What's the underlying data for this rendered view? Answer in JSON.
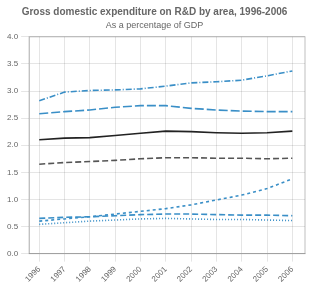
{
  "chart_data": {
    "type": "line",
    "title": "Gross domestic expenditure on R&D by area, 1996-2006",
    "subtitle": "As a percentage of GDP",
    "x": [
      1996,
      1997,
      1998,
      1999,
      2000,
      2001,
      2002,
      2003,
      2004,
      2005,
      2006
    ],
    "series": [
      {
        "color": "#3a8fc7",
        "line_style": "dashdot",
        "values": [
          2.82,
          2.98,
          3.01,
          3.02,
          3.04,
          3.09,
          3.15,
          3.17,
          3.2,
          3.28,
          3.37
        ]
      },
      {
        "color": "#3a8fc7",
        "line_style": "longdash",
        "values": [
          2.58,
          2.62,
          2.65,
          2.7,
          2.73,
          2.73,
          2.68,
          2.65,
          2.63,
          2.62,
          2.62
        ]
      },
      {
        "color": "#222222",
        "line_style": "solid",
        "values": [
          2.1,
          2.13,
          2.14,
          2.18,
          2.22,
          2.26,
          2.25,
          2.23,
          2.22,
          2.23,
          2.26
        ]
      },
      {
        "color": "#555555",
        "line_style": "dashed",
        "values": [
          1.65,
          1.68,
          1.7,
          1.72,
          1.75,
          1.77,
          1.77,
          1.76,
          1.76,
          1.75,
          1.76
        ]
      },
      {
        "color": "#3a8fc7",
        "line_style": "shortdash",
        "values": [
          0.6,
          0.64,
          0.68,
          0.73,
          0.78,
          0.83,
          0.9,
          0.99,
          1.08,
          1.2,
          1.38
        ]
      },
      {
        "color": "#3a8fc7",
        "line_style": "dashed",
        "values": [
          0.65,
          0.67,
          0.68,
          0.7,
          0.72,
          0.73,
          0.73,
          0.72,
          0.71,
          0.71,
          0.7
        ]
      },
      {
        "color": "#3a8fc7",
        "line_style": "dotted",
        "values": [
          0.54,
          0.57,
          0.6,
          0.62,
          0.64,
          0.65,
          0.64,
          0.63,
          0.63,
          0.62,
          0.61
        ]
      }
    ],
    "xlim": [
      1995.6,
      2006.5
    ],
    "xticks": [
      1996,
      1997,
      1998,
      1999,
      2000,
      2001,
      2002,
      2003,
      2004,
      2005,
      2006
    ],
    "ylim": [
      0,
      4.0
    ],
    "yticks": [
      {
        "value": 0,
        "label": "0.0"
      },
      {
        "value": 0.5,
        "label": "0.5"
      },
      {
        "value": 1.0,
        "label": "1.0"
      },
      {
        "value": 1.5,
        "label": "1.5"
      },
      {
        "value": 2.0,
        "label": "2.0"
      },
      {
        "value": 2.5,
        "label": "2.5"
      },
      {
        "value": 3.0,
        "label": "3.0"
      },
      {
        "value": 3.5,
        "label": "3.5"
      },
      {
        "value": 4.0,
        "label": "4.0"
      }
    ],
    "grid": true
  }
}
